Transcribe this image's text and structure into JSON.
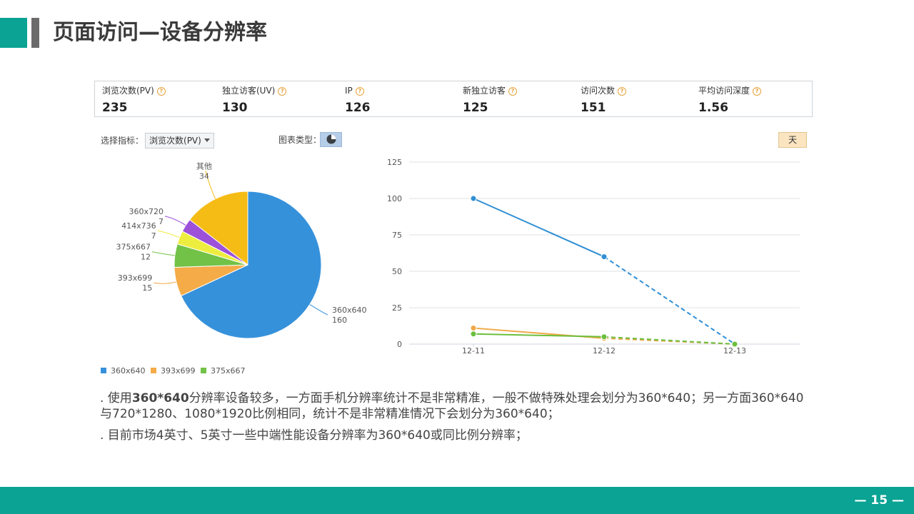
{
  "slide": {
    "title": "页面访问—设备分辨率",
    "page_number": "— 15 —"
  },
  "stats": [
    {
      "label": "浏览次数(PV)",
      "value": "235"
    },
    {
      "label": "独立访客(UV)",
      "value": "130"
    },
    {
      "label": "IP",
      "value": "126"
    },
    {
      "label": "新独立访客",
      "value": "125"
    },
    {
      "label": "访问次数",
      "value": "151"
    },
    {
      "label": "平均访问深度",
      "value": "1.56"
    }
  ],
  "controls": {
    "metric_label": "选择指标：",
    "metric_value": "浏览次数(PV)",
    "chart_type_label": "图表类型：",
    "granularity_button": "天"
  },
  "chart_data": [
    {
      "type": "pie",
      "categories": [
        "360x640",
        "393x699",
        "375x667",
        "414x736",
        "360x720",
        "其他"
      ],
      "values": [
        160,
        15,
        12,
        7,
        7,
        34
      ],
      "colors": [
        "#3691db",
        "#f4ab48",
        "#72c247",
        "#eded40",
        "#9c51d8",
        "#f5bc16"
      ],
      "legend": [
        "360x640",
        "393x699",
        "375x667"
      ],
      "legend_position": "bottom-left"
    },
    {
      "type": "line",
      "x": [
        "12-11",
        "12-12",
        "12-13"
      ],
      "ylim": [
        0,
        125
      ],
      "yticks": [
        0,
        25,
        50,
        75,
        100,
        125
      ],
      "grid": true,
      "last_segment_dashed": true,
      "series": [
        {
          "name": "360x640",
          "values": [
            100,
            60,
            0
          ],
          "color": "#2f8fd5"
        },
        {
          "name": "393x699",
          "values": [
            11,
            4,
            0
          ],
          "color": "#f0a847"
        },
        {
          "name": "375x667",
          "values": [
            7,
            5,
            0
          ],
          "color": "#6bbf3e"
        }
      ]
    }
  ],
  "notes": [
    {
      "prefix": ". 使用",
      "bold": "360*640",
      "text": "分辨率设备较多，一方面手机分辨率统计不是非常精准，一般不做特殊处理会划分为360*640；另一方面360*640与720*1280、1080*1920比例相同，统计不是非常精准情况下会划分为360*640；"
    },
    {
      "prefix": ". 目前市场4英寸、5英寸一些中端性能设备分辨率为360*640或同比例分辨率；",
      "bold": "",
      "text": ""
    }
  ]
}
